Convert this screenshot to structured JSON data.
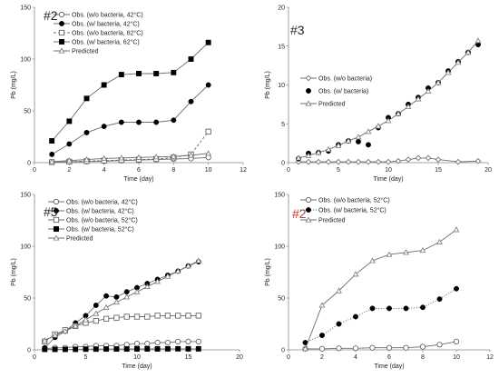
{
  "chart_data": [
    {
      "type": "scatter",
      "panel_label": "#2",
      "panel_label_color": "#222222",
      "xlabel": "Time (day)",
      "ylabel": "Pb (mg/L)",
      "xlim": [
        0,
        12
      ],
      "ylim": [
        0,
        150
      ],
      "xticks": [
        0,
        2,
        4,
        6,
        8,
        10,
        12
      ],
      "yticks": [
        0,
        50,
        100,
        150
      ],
      "legend_position": "top-left",
      "series": [
        {
          "name": "Obs. (w/o bacteria, 42°C)",
          "marker": "circle-open",
          "line": "solid",
          "x": [
            1,
            2,
            3,
            4,
            5,
            6,
            7,
            8,
            9,
            10
          ],
          "y": [
            0.5,
            0.8,
            1,
            1.5,
            2,
            2.5,
            3,
            3.5,
            4,
            5
          ]
        },
        {
          "name": "Obs. (w/ bacteria, 42°C)",
          "marker": "circle-filled",
          "line": "solid",
          "x": [
            1,
            2,
            3,
            4,
            5,
            6,
            7,
            8,
            9,
            10
          ],
          "y": [
            8,
            18,
            29,
            35,
            39,
            39,
            39,
            41,
            59,
            75
          ]
        },
        {
          "name": "Obs. (w/o bacteria, 62°C)",
          "marker": "square-open",
          "line": "dashed",
          "x": [
            1,
            2,
            3,
            4,
            5,
            6,
            7,
            8,
            9,
            10
          ],
          "y": [
            0.5,
            1,
            1.5,
            2,
            2.5,
            3,
            3.5,
            5,
            8,
            30
          ]
        },
        {
          "name": "Obs. (w/ bacteria, 62°C)",
          "marker": "square-filled",
          "line": "solid",
          "x": [
            1,
            2,
            3,
            4,
            5,
            6,
            7,
            8,
            9,
            10
          ],
          "y": [
            21,
            40,
            62,
            75,
            85,
            86,
            86,
            87,
            100,
            116
          ]
        },
        {
          "name": "Predicted",
          "marker": "triangle-open",
          "line": "solid",
          "x": [
            1,
            2,
            3,
            4,
            5,
            6,
            7,
            8,
            9,
            10
          ],
          "y": [
            1,
            2,
            3,
            4,
            4.5,
            5,
            5.5,
            6,
            7,
            9
          ]
        }
      ]
    },
    {
      "type": "scatter",
      "panel_label": "#3",
      "panel_label_color": "#222222",
      "xlabel": "Time (day)",
      "ylabel": "Pb (mg/L)",
      "xlim": [
        0,
        20
      ],
      "ylim": [
        0,
        20
      ],
      "xticks": [
        0,
        5,
        10,
        15,
        20
      ],
      "yticks": [
        0,
        5,
        10,
        15,
        20
      ],
      "legend_position": "center-left",
      "series": [
        {
          "name": "Obs. (w/o bacteria)",
          "marker": "diamond-open",
          "line": "solid",
          "x": [
            1,
            2,
            3,
            4,
            5,
            6,
            7,
            8,
            9,
            10,
            11,
            12,
            13,
            14,
            15,
            17,
            19
          ],
          "y": [
            0.1,
            0.1,
            0.1,
            0.1,
            0.1,
            0.1,
            0.1,
            0.1,
            0.1,
            0.1,
            0.2,
            0.4,
            0.6,
            0.6,
            0.4,
            0.1,
            0.2
          ]
        },
        {
          "name": "Obs. (w/ bacteria)",
          "marker": "circle-filled",
          "line": "none",
          "x": [
            1,
            2,
            3,
            4,
            5,
            6,
            7,
            8,
            9,
            10,
            11,
            12,
            13,
            14,
            15,
            16,
            17,
            18,
            19
          ],
          "y": [
            0.5,
            1.2,
            1.3,
            1.5,
            2.3,
            2.8,
            2.7,
            2.3,
            4.5,
            5.8,
            6.3,
            7.5,
            8.4,
            9.6,
            10.3,
            11.8,
            13,
            14.2,
            15.2
          ]
        },
        {
          "name": "Predicted",
          "marker": "triangle-open",
          "line": "solid",
          "x": [
            1,
            2,
            3,
            4,
            5,
            6,
            7,
            8,
            9,
            10,
            11,
            12,
            13,
            14,
            15,
            16,
            17,
            18,
            19
          ],
          "y": [
            0.6,
            0.9,
            1.3,
            1.7,
            2.2,
            2.8,
            3.3,
            4,
            4.7,
            5.4,
            6.3,
            7.2,
            8.2,
            9.2,
            10.3,
            11.6,
            12.9,
            14.2,
            15.7
          ]
        }
      ]
    },
    {
      "type": "scatter",
      "panel_label": "#5",
      "panel_label_color": "#222222",
      "xlabel": "Time (day)",
      "ylabel": "Pb (mg/L)",
      "xlim": [
        0,
        20
      ],
      "ylim": [
        0,
        150
      ],
      "xticks": [
        0,
        5,
        10,
        15,
        20
      ],
      "yticks": [
        0,
        50,
        100,
        150
      ],
      "legend_position": "top-left",
      "series": [
        {
          "name": "Obs. (w/o bacteria, 42°C)",
          "marker": "circle-open",
          "line": "solid",
          "x": [
            1,
            2,
            3,
            4,
            5,
            6,
            7,
            8,
            9,
            10,
            11,
            12,
            13,
            14,
            15,
            16
          ],
          "y": [
            1,
            2,
            2,
            3,
            3,
            4,
            4,
            4,
            5,
            6,
            6,
            7,
            7,
            8,
            8,
            8
          ]
        },
        {
          "name": "Obs. (w/ bacteria, 42°C)",
          "marker": "circle-filled",
          "line": "solid",
          "x": [
            1,
            2,
            3,
            4,
            5,
            6,
            7,
            8,
            9,
            10,
            11,
            12,
            13,
            14,
            15,
            16
          ],
          "y": [
            2,
            12,
            18,
            26,
            33,
            43,
            52,
            51,
            56,
            60,
            64,
            68,
            72,
            76,
            81,
            85
          ]
        },
        {
          "name": "Obs. (w/o bacteria, 52°C)",
          "marker": "square-open",
          "line": "solid",
          "x": [
            1,
            2,
            3,
            4,
            5,
            6,
            7,
            8,
            9,
            10,
            11,
            12,
            13,
            14,
            15,
            16
          ],
          "y": [
            8,
            15,
            19,
            23,
            26,
            28,
            30,
            31,
            32,
            32,
            32,
            33,
            33,
            33,
            33,
            33
          ]
        },
        {
          "name": "Obs. (w/ bacteria, 52°C)",
          "marker": "square-filled",
          "line": "solid",
          "x": [
            1,
            2,
            3,
            4,
            5,
            6,
            7,
            8,
            9,
            10,
            11,
            12,
            13,
            14,
            15,
            16
          ],
          "y": [
            0.5,
            0.5,
            0.5,
            0.5,
            0.7,
            0.7,
            0.8,
            0.8,
            0.8,
            0.9,
            0.9,
            0.9,
            1,
            1,
            1,
            1
          ]
        },
        {
          "name": "Predicted",
          "marker": "triangle-open",
          "line": "solid",
          "x": [
            1,
            2,
            3,
            4,
            5,
            6,
            7,
            8,
            9,
            10,
            11,
            12,
            13,
            14,
            15,
            16
          ],
          "y": [
            9,
            14,
            18,
            23,
            29,
            35,
            41,
            46,
            51,
            56,
            61,
            66,
            71,
            76,
            81,
            86
          ]
        }
      ]
    },
    {
      "type": "scatter",
      "panel_label": "#2",
      "panel_label_color": "#d9302a",
      "xlabel": "Time (day)",
      "ylabel": "Pb (mg/L)",
      "xlim": [
        0,
        12
      ],
      "ylim": [
        0,
        150
      ],
      "xticks": [
        0,
        2,
        4,
        6,
        8,
        10,
        12
      ],
      "yticks": [
        0,
        50,
        100,
        150
      ],
      "legend_position": "top-center",
      "series": [
        {
          "name": "Obs. (w/o bacteria, 52°C)",
          "marker": "circle-open",
          "line": "solid",
          "x": [
            1,
            2,
            3,
            4,
            5,
            6,
            7,
            8,
            9,
            10
          ],
          "y": [
            1,
            1,
            1.5,
            1.5,
            2,
            2,
            2,
            3,
            5,
            8
          ]
        },
        {
          "name": "Obs. (w/ bacteria, 52°C)",
          "marker": "circle-filled",
          "line": "dotted",
          "x": [
            1,
            2,
            3,
            4,
            5,
            6,
            7,
            8,
            9,
            10
          ],
          "y": [
            7,
            14,
            25,
            32,
            40,
            40,
            40,
            41,
            49,
            59
          ]
        },
        {
          "name": "Predicted",
          "marker": "triangle-open",
          "line": "solid",
          "x": [
            1,
            2,
            3,
            4,
            5,
            6,
            7,
            8,
            9,
            10
          ],
          "y": [
            1,
            43,
            57,
            73,
            86,
            92,
            94,
            96,
            104,
            116
          ]
        }
      ]
    }
  ]
}
